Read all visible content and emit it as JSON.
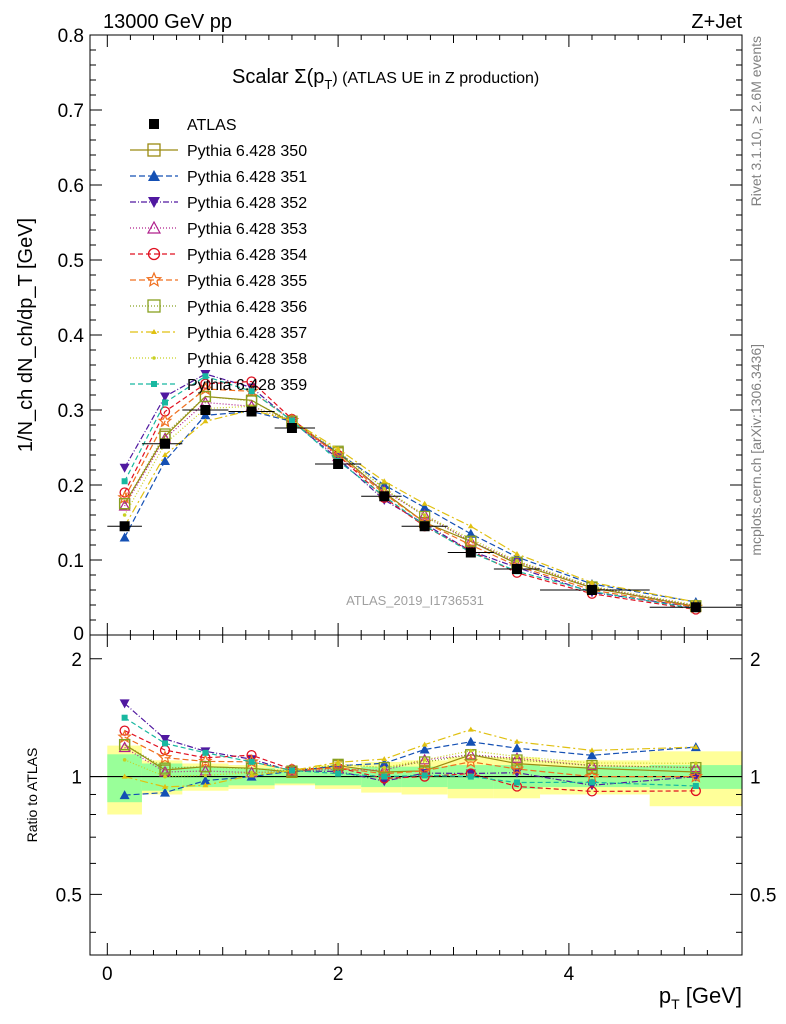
{
  "header": {
    "left": "13000 GeV pp",
    "right": "Z+Jet"
  },
  "side_labels": {
    "rivet": "Rivet 3.1.10, ≥ 2.6M events",
    "mcplots": "mcplots.cern.ch [arXiv:1306.3436]"
  },
  "watermark": "ATLAS_2019_I1736531",
  "chart_data": {
    "type": "line",
    "title_main": "Scalar Σ(p",
    "title_sub": "T",
    "title_tail": ") (ATLAS UE in Z production)",
    "xlabel": "p",
    "xlabel_sub": "T",
    "xlabel_unit": " [GeV]",
    "ylabel": "1/N_ch dN_ch/dp_T [GeV]",
    "ratio_ylabel": "Ratio to ATLAS",
    "xlim": [
      -0.15,
      5.5
    ],
    "ylim": [
      0,
      0.8
    ],
    "ratio_ylim": [
      0.35,
      2.3
    ],
    "x_ticks": [
      "0",
      "2",
      "4"
    ],
    "y_ticks": [
      "0.1",
      "0.2",
      "0.3",
      "0.4",
      "0.5",
      "0.6",
      "0.7",
      "0.8"
    ],
    "ratio_ticks": [
      "0.5",
      "1",
      "2"
    ],
    "bin_edges": [
      0.0,
      0.3,
      0.65,
      1.05,
      1.45,
      1.8,
      2.2,
      2.55,
      2.95,
      3.35,
      3.75,
      4.7,
      5.5
    ],
    "x": [
      0.15,
      0.5,
      0.85,
      1.25,
      1.6,
      2.0,
      2.4,
      2.75,
      3.15,
      3.55,
      4.2,
      5.1
    ],
    "data": {
      "name": "ATLAS",
      "values": [
        0.145,
        0.255,
        0.3,
        0.298,
        0.276,
        0.228,
        0.185,
        0.145,
        0.11,
        0.088,
        0.06,
        0.037
      ],
      "band_inner": [
        0.14,
        0.08,
        0.06,
        0.05,
        0.04,
        0.05,
        0.06,
        0.06,
        0.07,
        0.07,
        0.06,
        0.07
      ],
      "band_outer": [
        0.2,
        0.1,
        0.08,
        0.07,
        0.05,
        0.07,
        0.09,
        0.1,
        0.12,
        0.12,
        0.1,
        0.16
      ]
    },
    "series": [
      {
        "name": "Pythia 6.428 350",
        "color": "#9a8a10",
        "dash": "",
        "marker": "square-open",
        "values": [
          0.175,
          0.265,
          0.318,
          0.313,
          0.283,
          0.243,
          0.19,
          0.15,
          0.125,
          0.095,
          0.063,
          0.038
        ]
      },
      {
        "name": "Pythia 6.428 351",
        "color": "#1450b4",
        "dash": "6,3",
        "marker": "triangle-up",
        "values": [
          0.13,
          0.232,
          0.293,
          0.298,
          0.285,
          0.243,
          0.2,
          0.17,
          0.135,
          0.104,
          0.068,
          0.044
        ]
      },
      {
        "name": "Pythia 6.428 352",
        "color": "#5018a0",
        "dash": "6,2,1,2",
        "marker": "triangle-down",
        "values": [
          0.223,
          0.318,
          0.348,
          0.33,
          0.285,
          0.235,
          0.18,
          0.148,
          0.112,
          0.09,
          0.057,
          0.037
        ]
      },
      {
        "name": "Pythia 6.428 353",
        "color": "#b0208c",
        "dash": "1,2",
        "marker": "triangle-open",
        "values": [
          0.172,
          0.262,
          0.31,
          0.305,
          0.285,
          0.238,
          0.192,
          0.16,
          0.125,
          0.098,
          0.064,
          0.039
        ]
      },
      {
        "name": "Pythia 6.428 354",
        "color": "#e01020",
        "dash": "5,3",
        "marker": "circle-open",
        "values": [
          0.19,
          0.298,
          0.335,
          0.338,
          0.288,
          0.24,
          0.183,
          0.145,
          0.112,
          0.083,
          0.055,
          0.034
        ]
      },
      {
        "name": "Pythia 6.428 355",
        "color": "#f07020",
        "dash": "6,3",
        "marker": "star-open",
        "values": [
          0.183,
          0.285,
          0.328,
          0.325,
          0.286,
          0.24,
          0.188,
          0.15,
          0.12,
          0.092,
          0.06,
          0.037
        ]
      },
      {
        "name": "Pythia 6.428 356",
        "color": "#88a020",
        "dash": "1,2",
        "marker": "square-open",
        "values": [
          0.175,
          0.268,
          0.318,
          0.312,
          0.285,
          0.245,
          0.195,
          0.158,
          0.125,
          0.097,
          0.064,
          0.039
        ]
      },
      {
        "name": "Pythia 6.428 357",
        "color": "#e0c010",
        "dash": "8,3,2,3",
        "marker": "tri-small",
        "values": [
          0.145,
          0.24,
          0.285,
          0.3,
          0.286,
          0.248,
          0.205,
          0.175,
          0.145,
          0.108,
          0.07,
          0.044
        ]
      },
      {
        "name": "Pythia 6.428 358",
        "color": "#c8d020",
        "dash": "1,2",
        "marker": "dot",
        "values": [
          0.16,
          0.255,
          0.302,
          0.305,
          0.285,
          0.245,
          0.195,
          0.16,
          0.128,
          0.099,
          0.065,
          0.04
        ]
      },
      {
        "name": "Pythia 6.428 359",
        "color": "#18b8a0",
        "dash": "5,3",
        "marker": "square-filled",
        "values": [
          0.205,
          0.31,
          0.345,
          0.325,
          0.286,
          0.232,
          0.185,
          0.146,
          0.11,
          0.085,
          0.058,
          0.035
        ]
      }
    ]
  }
}
